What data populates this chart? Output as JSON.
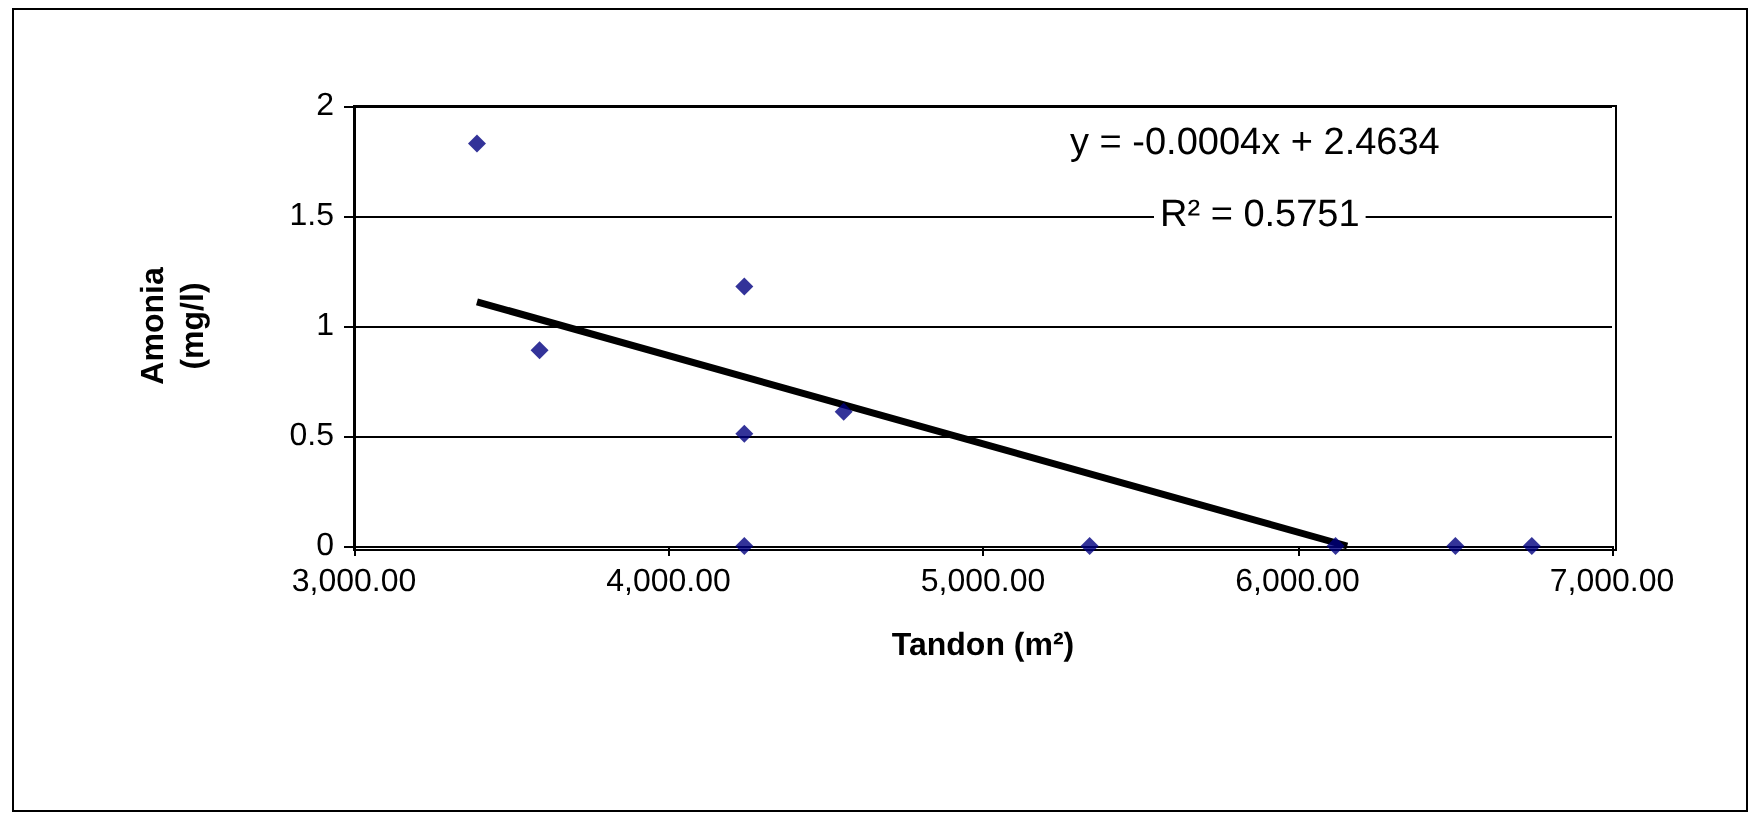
{
  "chart_data": {
    "type": "scatter",
    "xlabel": "Tandon (m²)",
    "ylabel": "Amonia (mg/l)",
    "annotations": [
      "y = -0.0004x + 2.4634",
      "R² = 0.5751"
    ],
    "series": [
      {
        "color": "#000080",
        "marker": "diamond",
        "x": [
          3391,
          3590,
          4241,
          4241,
          4241,
          4557,
          5339,
          6121,
          6502,
          6745
        ],
        "values": [
          1.83,
          0.89,
          1.18,
          0.51,
          0,
          0.61,
          0,
          0,
          0,
          0
        ]
      },
      {
        "type": "line",
        "color": "#000000",
        "marker": "none",
        "x": [
          3391,
          6158
        ],
        "values": [
          1.11,
          0
        ]
      }
    ],
    "xlim": [
      3000,
      7000
    ],
    "xticks": [
      {
        "value": 3000,
        "label": "3,000.00"
      },
      {
        "value": 4000,
        "label": "4,000.00"
      },
      {
        "value": 5000,
        "label": "5,000.00"
      },
      {
        "value": 6000,
        "label": "6,000.00"
      },
      {
        "value": 7000,
        "label": "7,000.00"
      }
    ],
    "ylim": [
      0,
      2
    ],
    "yticks": [
      0,
      0.5,
      1,
      1.5,
      2
    ],
    "grid": "y"
  }
}
